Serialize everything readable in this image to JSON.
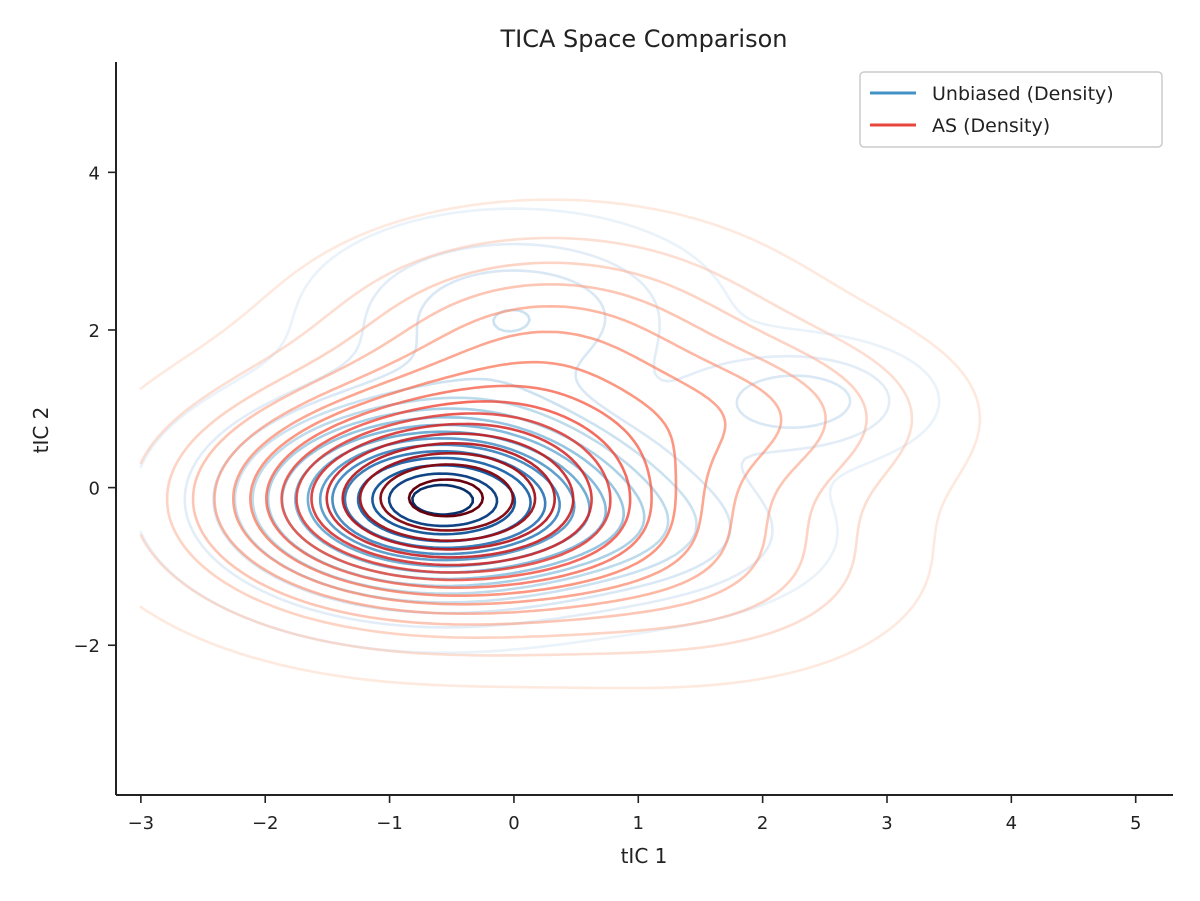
{
  "chart_data": {
    "type": "contour",
    "title": "TICA Space Comparison",
    "xlabel": "tIC 1",
    "ylabel": "tIC 2",
    "xlim": [
      -3.2,
      5.3
    ],
    "ylim": [
      -3.9,
      5.4
    ],
    "xticks": [
      -3,
      -2,
      -1,
      0,
      1,
      2,
      3,
      4,
      5
    ],
    "yticks": [
      -2,
      0,
      2,
      4
    ],
    "grid": false,
    "legend_position": "top-right",
    "colors": {
      "unbiased": "#4292c6",
      "as": "#e8453c"
    },
    "series": [
      {
        "name": "Unbiased (Density)",
        "colormap": "Blues",
        "levels": 16,
        "components": [
          {
            "cx": -0.6,
            "cy": -0.15,
            "sx": 0.95,
            "sy": 0.75,
            "w": 1.0
          },
          {
            "cx": 0.0,
            "cy": 2.2,
            "sx": 0.9,
            "sy": 0.7,
            "w": 0.22
          },
          {
            "cx": 2.3,
            "cy": 1.1,
            "sx": 0.6,
            "sy": 0.45,
            "w": 0.2
          },
          {
            "cx": 1.2,
            "cy": -0.6,
            "sx": 0.8,
            "sy": 0.6,
            "w": 0.15
          }
        ]
      },
      {
        "name": "AS (Density)",
        "colormap": "Reds",
        "levels": 16,
        "components": [
          {
            "cx": -0.6,
            "cy": -0.15,
            "sx": 1.15,
            "sy": 0.9,
            "w": 1.0
          },
          {
            "cx": 0.3,
            "cy": 1.9,
            "sx": 1.1,
            "sy": 0.85,
            "w": 0.3
          },
          {
            "cx": 2.0,
            "cy": 0.9,
            "sx": 0.9,
            "sy": 0.7,
            "w": 0.22
          },
          {
            "cx": 1.5,
            "cy": -1.0,
            "sx": 1.0,
            "sy": 0.8,
            "w": 0.18
          }
        ]
      }
    ]
  }
}
